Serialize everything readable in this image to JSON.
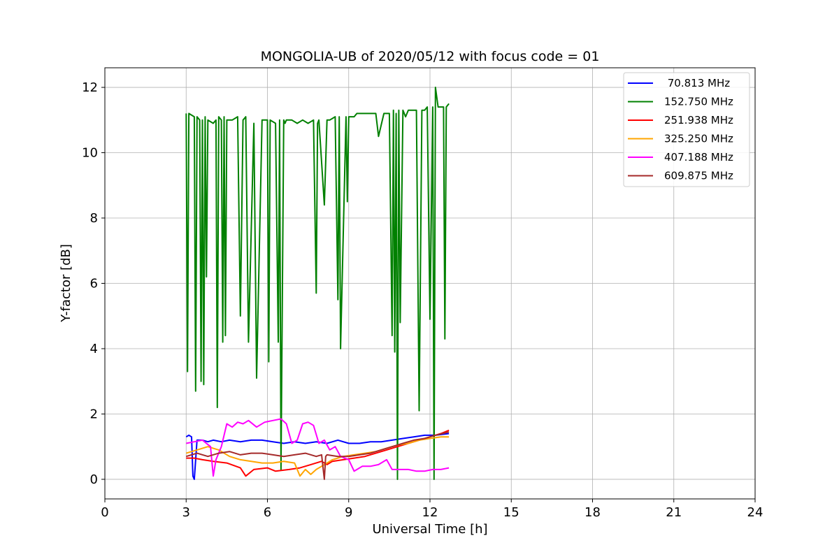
{
  "chart_data": {
    "type": "line",
    "title": "MONGOLIA-UB of 2020/05/12 with focus code = 01",
    "xlabel": "Universal Time [h]",
    "ylabel": "Y-factor [dB]",
    "xlim": [
      0,
      24
    ],
    "ylim": [
      -0.6,
      12.6
    ],
    "xticks": [
      0,
      3,
      6,
      9,
      12,
      15,
      18,
      21,
      24
    ],
    "yticks": [
      0,
      2,
      4,
      6,
      8,
      10,
      12
    ],
    "grid": true,
    "legend_position": "top-right",
    "series": [
      {
        "name": " 70.813 MHz",
        "color": "#0000ff",
        "x": [
          3.0,
          3.1,
          3.2,
          3.25,
          3.3,
          3.4,
          3.6,
          3.8,
          4.0,
          4.3,
          4.6,
          5.0,
          5.4,
          5.8,
          6.2,
          6.6,
          7.0,
          7.4,
          7.8,
          8.2,
          8.6,
          9.0,
          9.4,
          9.8,
          10.2,
          10.6,
          11.0,
          11.4,
          11.8,
          12.2,
          12.7
        ],
        "y": [
          1.3,
          1.35,
          1.3,
          0.1,
          0.0,
          1.2,
          1.2,
          1.15,
          1.2,
          1.15,
          1.2,
          1.15,
          1.2,
          1.2,
          1.15,
          1.1,
          1.15,
          1.1,
          1.15,
          1.1,
          1.2,
          1.1,
          1.1,
          1.15,
          1.15,
          1.2,
          1.25,
          1.3,
          1.35,
          1.35,
          1.4
        ]
      },
      {
        "name": "152.750 MHz",
        "color": "#008000",
        "x": [
          3.0,
          3.05,
          3.1,
          3.3,
          3.35,
          3.4,
          3.5,
          3.55,
          3.6,
          3.65,
          3.7,
          3.75,
          3.8,
          4.0,
          4.1,
          4.15,
          4.2,
          4.3,
          4.35,
          4.4,
          4.45,
          4.5,
          4.7,
          4.9,
          5.0,
          5.1,
          5.2,
          5.3,
          5.5,
          5.6,
          5.8,
          6.0,
          6.05,
          6.1,
          6.3,
          6.4,
          6.45,
          6.5,
          6.6,
          6.65,
          6.7,
          6.9,
          7.1,
          7.3,
          7.5,
          7.7,
          7.8,
          7.85,
          7.9,
          8.1,
          8.2,
          8.3,
          8.5,
          8.6,
          8.65,
          8.7,
          8.9,
          8.95,
          9.0,
          9.2,
          9.3,
          9.5,
          9.8,
          10.0,
          10.1,
          10.3,
          10.5,
          10.6,
          10.65,
          10.7,
          10.75,
          10.8,
          10.85,
          10.9,
          11.0,
          11.1,
          11.2,
          11.4,
          11.5,
          11.6,
          11.7,
          11.8,
          11.9,
          12.0,
          12.1,
          12.15,
          12.2,
          12.3,
          12.5,
          12.55,
          12.6,
          12.7
        ],
        "y": [
          11.2,
          3.3,
          11.2,
          11.1,
          2.7,
          11.1,
          11.0,
          3.0,
          11.0,
          2.9,
          11.1,
          6.2,
          11.0,
          10.9,
          11.0,
          2.2,
          11.1,
          11.0,
          4.2,
          11.1,
          4.4,
          11.0,
          11.0,
          11.1,
          5.0,
          11.0,
          11.1,
          4.2,
          10.9,
          3.1,
          11.0,
          11.0,
          3.6,
          11.0,
          10.9,
          4.2,
          11.0,
          0.3,
          11.0,
          10.9,
          11.0,
          11.0,
          10.9,
          11.0,
          10.9,
          11.0,
          5.7,
          10.9,
          11.0,
          8.4,
          11.0,
          11.0,
          11.1,
          5.5,
          11.1,
          4.0,
          11.1,
          8.5,
          11.1,
          11.1,
          11.2,
          11.2,
          11.2,
          11.2,
          10.5,
          11.2,
          11.2,
          4.4,
          11.3,
          3.9,
          11.2,
          0.0,
          11.3,
          4.8,
          11.3,
          11.1,
          11.3,
          11.3,
          11.3,
          2.1,
          11.3,
          11.3,
          11.4,
          4.9,
          11.4,
          0.0,
          12.0,
          11.4,
          11.4,
          4.3,
          11.4,
          11.5
        ]
      },
      {
        "name": "251.938 MHz",
        "color": "#ff0000",
        "x": [
          3.0,
          3.3,
          3.6,
          4.0,
          4.5,
          5.0,
          5.2,
          5.5,
          6.0,
          6.3,
          6.8,
          7.2,
          7.6,
          8.0,
          8.2,
          8.4,
          8.8,
          9.2,
          9.6,
          10.0,
          10.4,
          10.8,
          11.2,
          11.6,
          12.0,
          12.4,
          12.7
        ],
        "y": [
          0.65,
          0.65,
          0.6,
          0.55,
          0.5,
          0.35,
          0.1,
          0.3,
          0.35,
          0.25,
          0.3,
          0.35,
          0.45,
          0.55,
          0.45,
          0.55,
          0.6,
          0.65,
          0.7,
          0.8,
          0.9,
          1.0,
          1.1,
          1.2,
          1.3,
          1.4,
          1.5
        ]
      },
      {
        "name": "325.250 MHz",
        "color": "#ffa500",
        "x": [
          3.0,
          3.4,
          3.8,
          4.2,
          4.6,
          5.0,
          5.4,
          5.8,
          6.2,
          6.6,
          7.0,
          7.2,
          7.4,
          7.6,
          7.8,
          8.0,
          8.4,
          8.8,
          9.2,
          9.6,
          10.0,
          10.4,
          10.8,
          11.2,
          11.6,
          12.0,
          12.4,
          12.7
        ],
        "y": [
          0.8,
          0.9,
          1.0,
          0.9,
          0.7,
          0.6,
          0.55,
          0.5,
          0.5,
          0.55,
          0.5,
          0.1,
          0.3,
          0.15,
          0.3,
          0.4,
          0.6,
          0.7,
          0.75,
          0.8,
          0.85,
          0.95,
          1.05,
          1.1,
          1.2,
          1.25,
          1.3,
          1.3
        ]
      },
      {
        "name": "407.188 MHz",
        "color": "#ff00ff",
        "x": [
          3.0,
          3.3,
          3.6,
          3.9,
          4.0,
          4.1,
          4.3,
          4.5,
          4.7,
          4.9,
          5.1,
          5.3,
          5.6,
          5.9,
          6.2,
          6.5,
          6.7,
          6.9,
          7.1,
          7.3,
          7.5,
          7.7,
          7.9,
          8.1,
          8.3,
          8.5,
          8.7,
          9.0,
          9.2,
          9.5,
          9.8,
          10.1,
          10.4,
          10.6,
          10.9,
          11.2,
          11.5,
          11.8,
          12.1,
          12.4,
          12.7
        ],
        "y": [
          1.1,
          1.15,
          1.2,
          1.0,
          0.1,
          0.6,
          1.0,
          1.7,
          1.6,
          1.75,
          1.7,
          1.8,
          1.6,
          1.75,
          1.8,
          1.85,
          1.7,
          1.1,
          1.2,
          1.7,
          1.75,
          1.65,
          1.1,
          1.2,
          0.9,
          1.0,
          0.7,
          0.6,
          0.25,
          0.4,
          0.4,
          0.45,
          0.6,
          0.3,
          0.3,
          0.3,
          0.25,
          0.25,
          0.3,
          0.3,
          0.35
        ]
      },
      {
        "name": "609.875 MHz",
        "color": "#a52a2a",
        "x": [
          3.0,
          3.4,
          3.8,
          4.2,
          4.6,
          5.0,
          5.4,
          5.8,
          6.2,
          6.6,
          7.0,
          7.4,
          7.8,
          8.0,
          8.1,
          8.15,
          8.2,
          8.6,
          9.0,
          9.4,
          9.8,
          10.2,
          10.6,
          11.0,
          11.4,
          11.8,
          12.2,
          12.7
        ],
        "y": [
          0.7,
          0.8,
          0.7,
          0.8,
          0.85,
          0.75,
          0.8,
          0.8,
          0.75,
          0.7,
          0.75,
          0.8,
          0.7,
          0.75,
          0.0,
          0.7,
          0.75,
          0.7,
          0.7,
          0.75,
          0.8,
          0.9,
          1.0,
          1.1,
          1.2,
          1.25,
          1.35,
          1.45
        ]
      }
    ]
  }
}
